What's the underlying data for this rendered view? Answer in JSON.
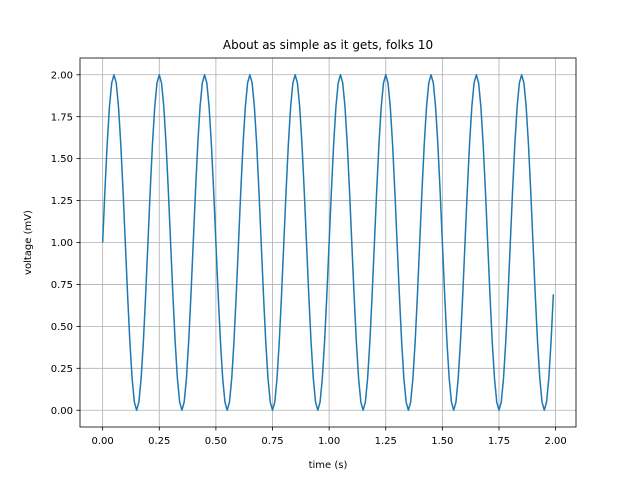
{
  "chart_data": {
    "type": "line",
    "title": "About as simple as it gets, folks 10",
    "xlabel": "time (s)",
    "ylabel": "voltage (mV)",
    "xlim": [
      -0.1,
      2.09
    ],
    "ylim": [
      -0.1,
      2.1
    ],
    "grid": true,
    "function": "1 + sin(2*pi*5*t)",
    "t_start": 0.0,
    "t_stop": 2.0,
    "t_step": 0.01,
    "line_color": "#1f77b4",
    "xticks": [
      0.0,
      0.25,
      0.5,
      0.75,
      1.0,
      1.25,
      1.5,
      1.75,
      2.0
    ],
    "xtick_labels": [
      "0.00",
      "0.25",
      "0.50",
      "0.75",
      "1.00",
      "1.25",
      "1.50",
      "1.75",
      "2.00"
    ],
    "yticks": [
      0.0,
      0.25,
      0.5,
      0.75,
      1.0,
      1.25,
      1.5,
      1.75,
      2.0
    ],
    "ytick_labels": [
      "0.00",
      "0.25",
      "0.50",
      "0.75",
      "1.00",
      "1.25",
      "1.50",
      "1.75",
      "2.00"
    ]
  }
}
